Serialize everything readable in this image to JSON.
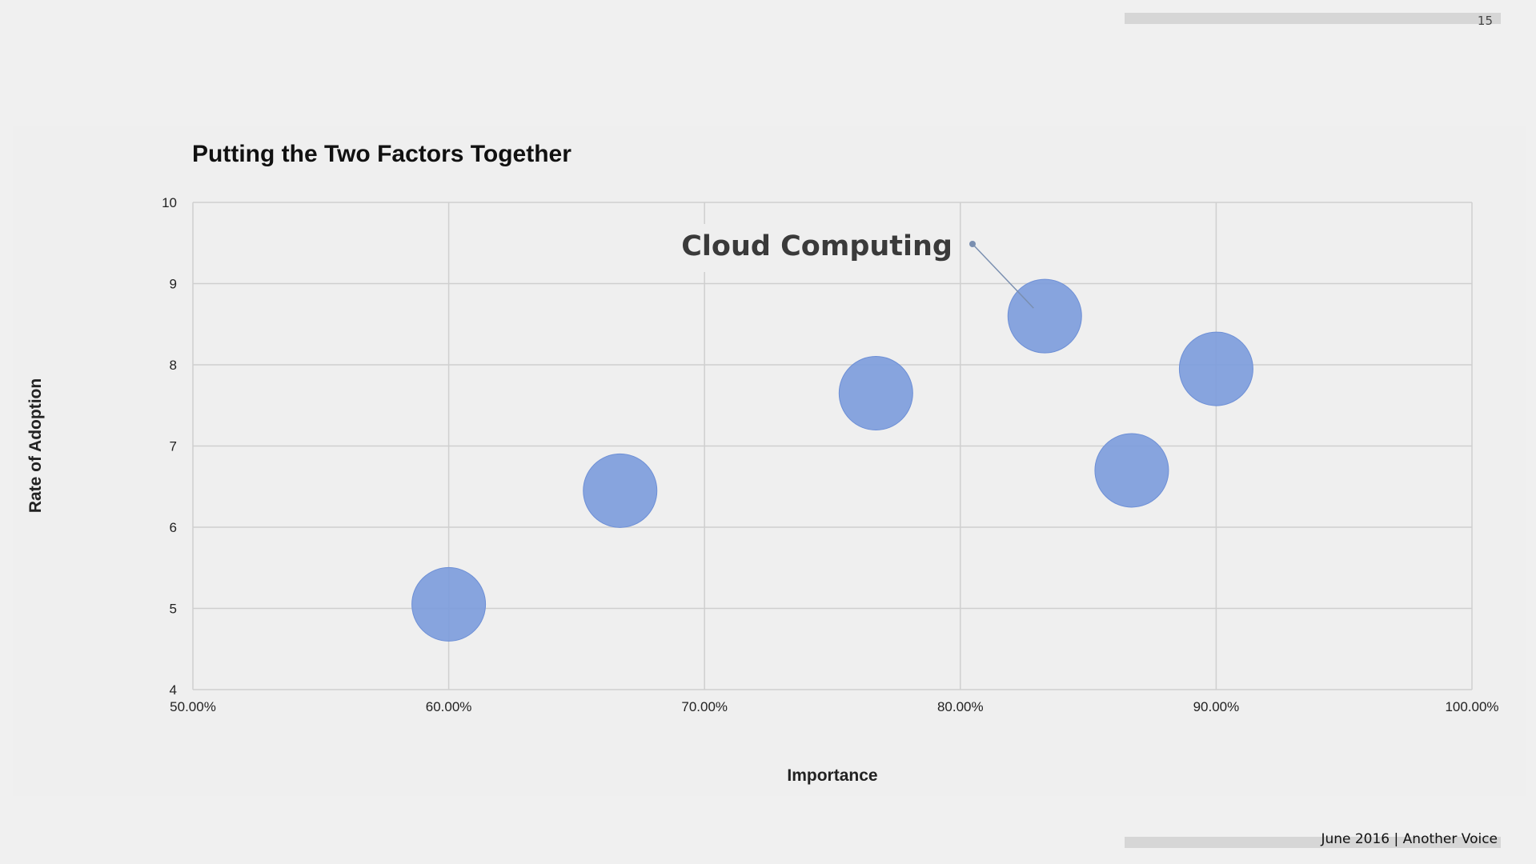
{
  "slide": {
    "page_number": "15",
    "footer": "June 2016  |  Another Voice"
  },
  "chart_data": {
    "type": "scatter",
    "title": "Putting the Two Factors Together",
    "xlabel": "Importance",
    "ylabel": "Rate of Adoption",
    "xlim": [
      0.5,
      1.0
    ],
    "ylim": [
      4,
      10
    ],
    "x_ticks": [
      "50.00%",
      "60.00%",
      "70.00%",
      "80.00%",
      "90.00%",
      "100.00%"
    ],
    "y_ticks": [
      "4",
      "5",
      "6",
      "7",
      "8",
      "9",
      "10"
    ],
    "grid": true,
    "point_color": "#7b9bdc",
    "points": [
      {
        "x": 0.6,
        "y": 5.05,
        "label": ""
      },
      {
        "x": 0.667,
        "y": 6.45,
        "label": ""
      },
      {
        "x": 0.767,
        "y": 7.65,
        "label": ""
      },
      {
        "x": 0.833,
        "y": 8.6,
        "label": "Cloud Computing"
      },
      {
        "x": 0.867,
        "y": 6.7,
        "label": ""
      },
      {
        "x": 0.9,
        "y": 7.95,
        "label": ""
      }
    ]
  }
}
